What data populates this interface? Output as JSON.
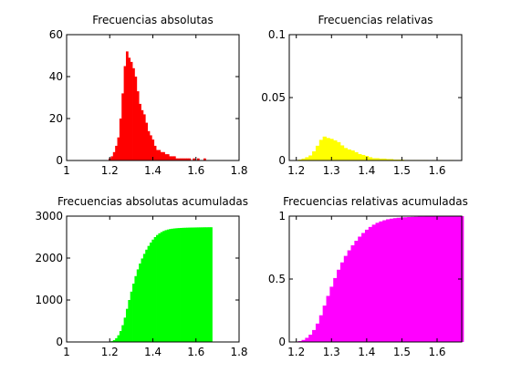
{
  "chart_data": [
    {
      "type": "bar",
      "title": "Frecuencias absolutas",
      "color": "#ff0000",
      "xlim": [
        1,
        1.8
      ],
      "ylim": [
        0,
        60
      ],
      "xticks": [
        "1",
        "1.2",
        "1.4",
        "1.6",
        "1.8"
      ],
      "yticks": [
        "0",
        "20",
        "40",
        "60"
      ],
      "x": [
        1.2,
        1.21,
        1.22,
        1.23,
        1.24,
        1.25,
        1.26,
        1.27,
        1.28,
        1.29,
        1.3,
        1.31,
        1.32,
        1.33,
        1.34,
        1.35,
        1.36,
        1.37,
        1.38,
        1.39,
        1.4,
        1.41,
        1.42,
        1.43,
        1.44,
        1.45,
        1.46,
        1.47,
        1.48,
        1.49,
        1.5,
        1.51,
        1.52,
        1.53,
        1.54,
        1.55,
        1.56,
        1.57,
        1.58,
        1.59,
        1.6,
        1.61,
        1.62,
        1.63,
        1.64,
        1.65
      ],
      "values": [
        1,
        2,
        4,
        7,
        11,
        20,
        32,
        45,
        52,
        49,
        47,
        44,
        40,
        33,
        27,
        24,
        22,
        18,
        14,
        12,
        10,
        7,
        5,
        5,
        4,
        4,
        3,
        3,
        2,
        2,
        2,
        1,
        1,
        1,
        1,
        1,
        1,
        1,
        0,
        1,
        0,
        1,
        0,
        0,
        1,
        0
      ]
    },
    {
      "type": "bar",
      "title": "Frecuencias relativas",
      "color": "#ffff00",
      "xlim": [
        1.18,
        1.67
      ],
      "ylim": [
        0,
        0.1
      ],
      "xticks": [
        "1.2",
        "1.3",
        "1.4",
        "1.5",
        "1.6"
      ],
      "yticks": [
        "0",
        "0.05",
        "0.1"
      ],
      "x": [
        1.2,
        1.21,
        1.22,
        1.23,
        1.24,
        1.25,
        1.26,
        1.27,
        1.28,
        1.29,
        1.3,
        1.31,
        1.32,
        1.33,
        1.34,
        1.35,
        1.36,
        1.37,
        1.38,
        1.39,
        1.4,
        1.41,
        1.42,
        1.43,
        1.44,
        1.45,
        1.46,
        1.47,
        1.48,
        1.49,
        1.5,
        1.51,
        1.52,
        1.53,
        1.54,
        1.55,
        1.56,
        1.57,
        1.58,
        1.59,
        1.6,
        1.61,
        1.62,
        1.63,
        1.64,
        1.65
      ],
      "values": [
        0.0004,
        0.0007,
        0.0015,
        0.0026,
        0.004,
        0.0073,
        0.0117,
        0.0164,
        0.019,
        0.0179,
        0.0172,
        0.016,
        0.0146,
        0.012,
        0.0099,
        0.0088,
        0.008,
        0.0066,
        0.0051,
        0.0044,
        0.0036,
        0.0026,
        0.0018,
        0.0018,
        0.0015,
        0.0015,
        0.0011,
        0.0011,
        0.0007,
        0.0007,
        0.0007,
        0.0004,
        0.0004,
        0.0004,
        0.0004,
        0.0004,
        0.0004,
        0.0004,
        0,
        0.0004,
        0,
        0.0004,
        0,
        0,
        0.0004,
        0
      ]
    },
    {
      "type": "bar",
      "title": "Frecuencias absolutas acumuladas",
      "color": "#00ff00",
      "xlim": [
        1,
        1.8
      ],
      "ylim": [
        0,
        3000
      ],
      "xticks": [
        "1",
        "1.2",
        "1.4",
        "1.6",
        "1.8"
      ],
      "yticks": [
        "0",
        "1000",
        "2000",
        "3000"
      ],
      "x": [
        1.2,
        1.21,
        1.22,
        1.23,
        1.24,
        1.25,
        1.26,
        1.27,
        1.28,
        1.29,
        1.3,
        1.31,
        1.32,
        1.33,
        1.34,
        1.35,
        1.36,
        1.37,
        1.38,
        1.39,
        1.4,
        1.41,
        1.42,
        1.43,
        1.44,
        1.45,
        1.46,
        1.47,
        1.48,
        1.49,
        1.5,
        1.51,
        1.52,
        1.53,
        1.54,
        1.55,
        1.56,
        1.57,
        1.58,
        1.59,
        1.6,
        1.61,
        1.62,
        1.63,
        1.64,
        1.65,
        1.66,
        1.67
      ],
      "values": [
        5,
        20,
        45,
        90,
        160,
        260,
        400,
        580,
        790,
        1000,
        1200,
        1390,
        1570,
        1730,
        1870,
        1990,
        2100,
        2200,
        2290,
        2370,
        2440,
        2500,
        2550,
        2590,
        2620,
        2645,
        2665,
        2680,
        2692,
        2700,
        2706,
        2711,
        2715,
        2718,
        2721,
        2723,
        2725,
        2727,
        2728,
        2729,
        2730,
        2731,
        2732,
        2733,
        2734,
        2734,
        2735,
        2735
      ]
    },
    {
      "type": "bar",
      "title": "Frecuencias relativas acumuladas",
      "color": "#ff00ff",
      "xlim": [
        1.18,
        1.67
      ],
      "ylim": [
        0,
        1
      ],
      "xticks": [
        "1.2",
        "1.3",
        "1.4",
        "1.5",
        "1.6"
      ],
      "yticks": [
        "0",
        "0.5",
        "1"
      ],
      "x": [
        1.2,
        1.21,
        1.22,
        1.23,
        1.24,
        1.25,
        1.26,
        1.27,
        1.28,
        1.29,
        1.3,
        1.31,
        1.32,
        1.33,
        1.34,
        1.35,
        1.36,
        1.37,
        1.38,
        1.39,
        1.4,
        1.41,
        1.42,
        1.43,
        1.44,
        1.45,
        1.46,
        1.47,
        1.48,
        1.49,
        1.5,
        1.51,
        1.52,
        1.53,
        1.54,
        1.55,
        1.56,
        1.57,
        1.58,
        1.59,
        1.6,
        1.61,
        1.62,
        1.63,
        1.64,
        1.65,
        1.66,
        1.67
      ],
      "values": [
        0.002,
        0.007,
        0.016,
        0.033,
        0.058,
        0.095,
        0.146,
        0.212,
        0.289,
        0.366,
        0.439,
        0.508,
        0.574,
        0.632,
        0.684,
        0.728,
        0.768,
        0.804,
        0.837,
        0.866,
        0.892,
        0.914,
        0.932,
        0.947,
        0.958,
        0.967,
        0.975,
        0.98,
        0.984,
        0.987,
        0.99,
        0.991,
        0.993,
        0.994,
        0.995,
        0.996,
        0.996,
        0.997,
        0.997,
        0.998,
        0.998,
        0.998,
        0.999,
        0.999,
        0.999,
        0.999,
        1,
        1
      ]
    }
  ]
}
